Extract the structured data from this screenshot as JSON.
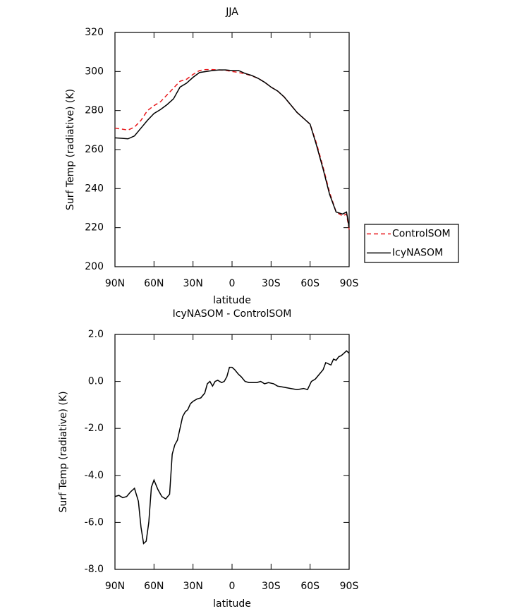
{
  "chart_data": [
    {
      "type": "line",
      "title": "JJA",
      "x_label": "latitude",
      "y_label": "Surf Temp (radiative) (K)",
      "x": [
        90,
        85,
        80,
        75,
        70,
        65,
        60,
        55,
        50,
        45,
        40,
        35,
        30,
        25,
        20,
        15,
        10,
        5,
        0,
        -5,
        -10,
        -15,
        -20,
        -25,
        -30,
        -35,
        -40,
        -45,
        -50,
        -55,
        -60,
        -65,
        -70,
        -75,
        -80,
        -85,
        -88,
        -90
      ],
      "series": [
        {
          "name": "ControlSOM",
          "color": "#e8191c",
          "line_style": "dashed",
          "values": [
            271,
            270.5,
            270,
            271.5,
            275,
            280,
            282.5,
            284.5,
            288,
            291.5,
            295,
            296,
            298.5,
            300.5,
            301,
            301,
            300.8,
            300.6,
            300,
            299.5,
            298.8,
            297.8,
            296.5,
            294.5,
            292,
            290,
            287,
            283,
            279,
            276,
            273,
            263,
            251,
            238,
            228,
            226,
            227,
            219
          ]
        },
        {
          "name": "IcyNASOM",
          "color": "#000000",
          "line_style": "solid",
          "values": [
            266,
            265.8,
            265.5,
            267,
            271,
            275,
            278.5,
            280.5,
            283,
            286,
            292,
            294,
            297,
            299.5,
            300,
            300.5,
            300.8,
            300.8,
            300.5,
            300.5,
            299,
            298,
            296.5,
            294.5,
            292,
            290,
            287,
            283,
            279,
            276,
            273,
            262,
            250,
            237,
            228,
            227,
            228,
            220
          ]
        }
      ],
      "xlim": [
        90,
        -90
      ],
      "xticks": [
        {
          "value": 90,
          "label": "90N"
        },
        {
          "value": 60,
          "label": "60N"
        },
        {
          "value": 30,
          "label": "30N"
        },
        0,
        {
          "value": -30,
          "label": "30S"
        },
        {
          "value": -60,
          "label": "60S"
        },
        {
          "value": -90,
          "label": "90S"
        }
      ],
      "ylim": [
        200,
        320
      ],
      "yticks": [
        200,
        220,
        240,
        260,
        280,
        300,
        320
      ],
      "legend": "right"
    },
    {
      "type": "line",
      "title": "IcyNASOM - ControlSOM",
      "x_label": "latitude",
      "y_label": "Surf Temp (radiative) (K)",
      "x": [
        90,
        87,
        84,
        81,
        78,
        75,
        72,
        70,
        68,
        66,
        64,
        62,
        60,
        57,
        54,
        51,
        48,
        46,
        44,
        42,
        40,
        38,
        36,
        34,
        32,
        30,
        27,
        24,
        21,
        19,
        17,
        15,
        13,
        11,
        8,
        6,
        4,
        2,
        0,
        -2,
        -5,
        -7,
        -10,
        -13,
        -16,
        -19,
        -22,
        -25,
        -28,
        -32,
        -35,
        -40,
        -45,
        -50,
        -55,
        -58,
        -61,
        -64,
        -67,
        -70,
        -72,
        -74,
        -76,
        -78,
        -80,
        -82,
        -84,
        -86,
        -88,
        -90
      ],
      "series": [
        {
          "name": "IcyNASOM - ControlSOM",
          "color": "#000000",
          "line_style": "solid",
          "values": [
            -4.9,
            -4.85,
            -4.95,
            -4.9,
            -4.7,
            -4.55,
            -5.1,
            -6.2,
            -6.9,
            -6.8,
            -6.0,
            -4.5,
            -4.2,
            -4.6,
            -4.9,
            -5.0,
            -4.8,
            -3.1,
            -2.7,
            -2.5,
            -2.0,
            -1.5,
            -1.3,
            -1.2,
            -0.95,
            -0.85,
            -0.75,
            -0.7,
            -0.5,
            -0.1,
            0.0,
            -0.2,
            0.0,
            0.05,
            -0.05,
            0.0,
            0.2,
            0.6,
            0.6,
            0.5,
            0.3,
            0.2,
            0.0,
            -0.05,
            -0.05,
            -0.05,
            0.0,
            -0.1,
            -0.05,
            -0.1,
            -0.2,
            -0.25,
            -0.3,
            -0.35,
            -0.3,
            -0.35,
            0.0,
            0.1,
            0.3,
            0.5,
            0.8,
            0.75,
            0.7,
            0.95,
            0.9,
            1.05,
            1.1,
            1.2,
            1.3,
            1.2
          ]
        }
      ],
      "xlim": [
        90,
        -90
      ],
      "xticks": [
        {
          "value": 90,
          "label": "90N"
        },
        {
          "value": 60,
          "label": "60N"
        },
        {
          "value": 30,
          "label": "30N"
        },
        0,
        {
          "value": -30,
          "label": "30S"
        },
        {
          "value": -60,
          "label": "60S"
        },
        {
          "value": -90,
          "label": "90S"
        }
      ],
      "ylim": [
        -8,
        2
      ],
      "yticks": [
        {
          "value": -8,
          "label": "-8.0"
        },
        {
          "value": -6,
          "label": "-6.0"
        },
        {
          "value": -4,
          "label": "-4.0"
        },
        {
          "value": -2,
          "label": "-2.0"
        },
        {
          "value": 0,
          "label": "0.0"
        },
        {
          "value": 2,
          "label": "2.0"
        }
      ]
    }
  ]
}
